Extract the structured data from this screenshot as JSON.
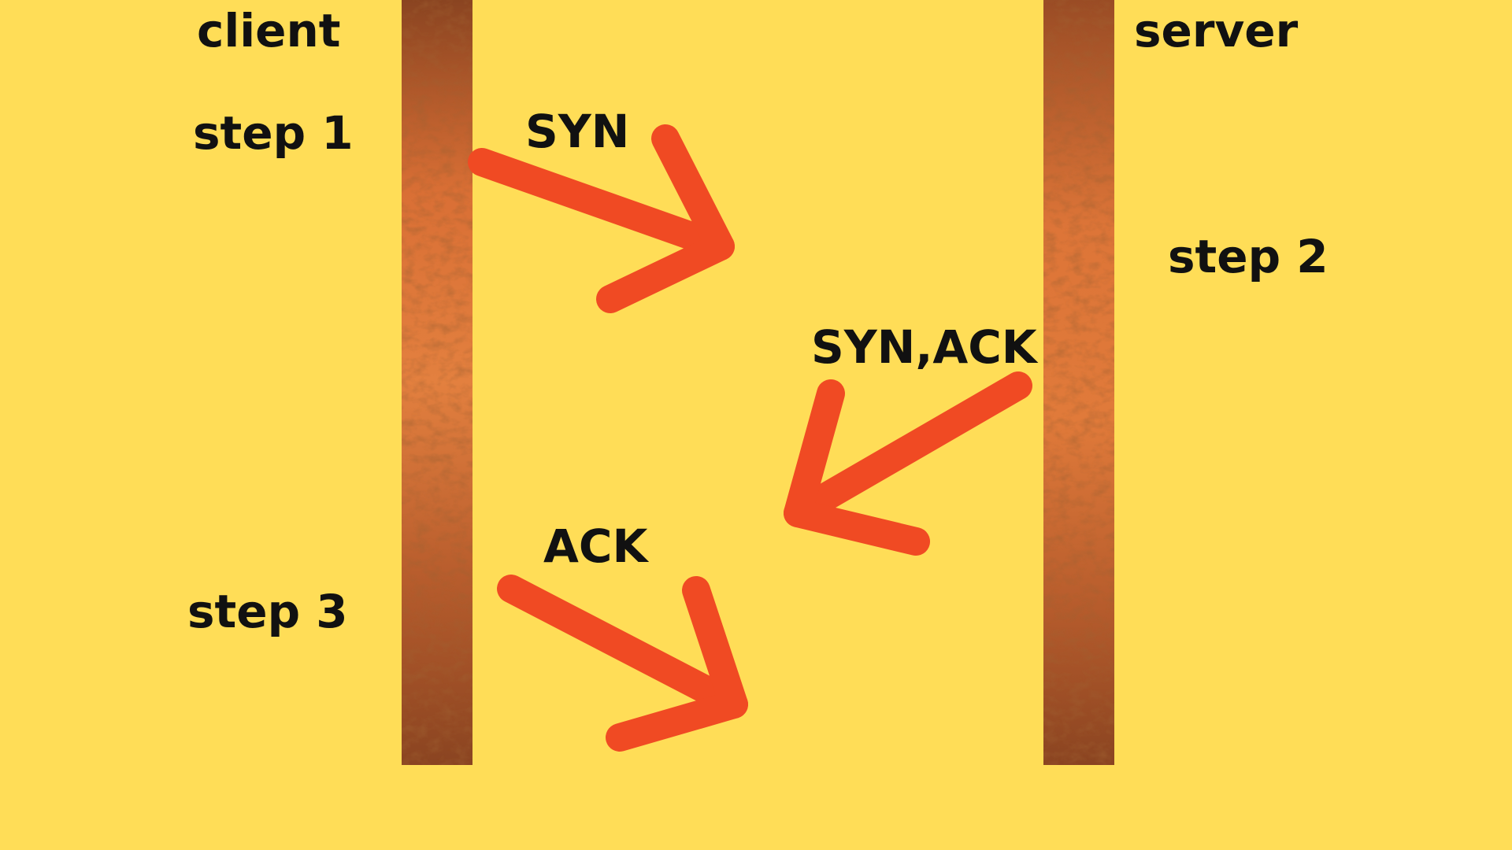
{
  "actors": {
    "client": "client",
    "server": "server"
  },
  "steps": {
    "step1": "step 1",
    "step2": "step 2",
    "step3": "step 3"
  },
  "messages": {
    "syn": "SYN",
    "syn_ack": "SYN,ACK",
    "ack": "ACK"
  },
  "colors": {
    "background": "#ffdd57",
    "arrow": "#f04a23",
    "lifeline_light": "#e07a3a",
    "lifeline_dark": "#8a4421",
    "text": "#111111"
  }
}
